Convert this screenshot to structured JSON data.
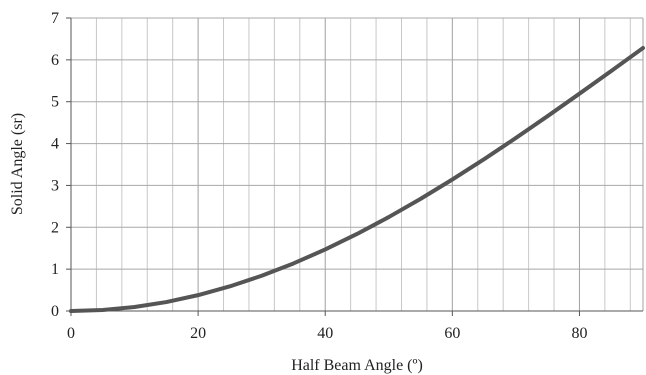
{
  "chart_data": {
    "type": "line",
    "title": "",
    "xlabel": "Half Beam Angle (º)",
    "ylabel": "Solid Angle (sr)",
    "xlim": [
      0,
      90
    ],
    "ylim": [
      0,
      7
    ],
    "x_ticks": [
      0,
      20,
      40,
      60,
      80
    ],
    "y_ticks": [
      0,
      1,
      2,
      3,
      4,
      5,
      6,
      7
    ],
    "x_tick_labels": [
      "0",
      "20",
      "40",
      "60",
      "80"
    ],
    "y_tick_labels": [
      "0",
      "1",
      "2",
      "3",
      "4",
      "5",
      "6",
      "7"
    ],
    "grid": true,
    "minor_grid_x_step": 4,
    "legend": "none",
    "series": [
      {
        "color": "#555555",
        "x": [
          0,
          5,
          10,
          15,
          20,
          25,
          30,
          35,
          40,
          45,
          50,
          55,
          60,
          65,
          70,
          75,
          80,
          85,
          90
        ],
        "y": [
          0.0,
          0.024,
          0.095,
          0.214,
          0.379,
          0.589,
          0.842,
          1.136,
          1.47,
          1.84,
          2.244,
          2.679,
          3.142,
          3.628,
          4.134,
          4.657,
          5.192,
          5.735,
          6.283
        ]
      }
    ]
  }
}
